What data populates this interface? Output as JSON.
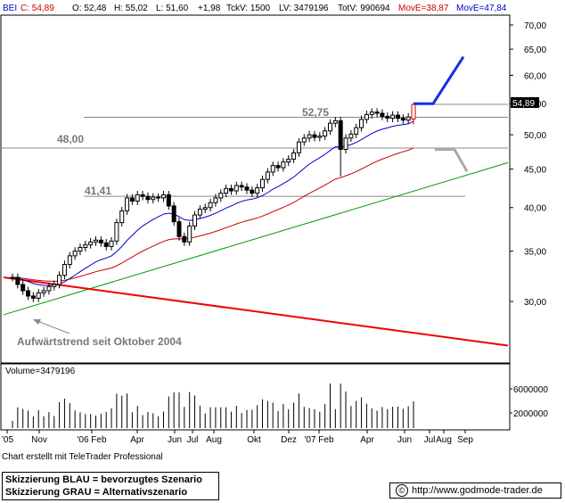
{
  "header": {
    "symbol": "BEI",
    "close_label": "C: 54,89",
    "open_label": "O: 52,48",
    "high_label": "H: 55,02",
    "low_label": "L: 51,60",
    "change_label": "+1,98",
    "tickvol_label": "TckV: 1500",
    "lastvol_label": "LV: 3479196",
    "totvol_label": "TotV: 990694",
    "ma1_label": "MovE=38,87",
    "ma2_label": "MovE=47,84"
  },
  "colors": {
    "symbol": "#0000cc",
    "ma1": "#cc0000",
    "ma2": "#0000cc",
    "candle": "#000000",
    "trend_red": "#ee0000",
    "trend_green": "#009900",
    "scenario_blue": "#1133dd",
    "scenario_grey": "#aaaaaa",
    "last_price_candle": "#cc0000"
  },
  "annotations": {
    "level_52_75": "52,75",
    "level_48": "48,00",
    "level_41_41": "41,41",
    "trend_text": "Aufwärtstrend seit Oktober 2004",
    "last_price": "54,89"
  },
  "volume_panel": {
    "label": "Volume=3479196",
    "tick_6m": "6000000",
    "tick_2m": "2000000"
  },
  "footer": {
    "credit": "Chart erstellt mit TeleTrader Professional",
    "legend_blue": "Skizzierung BLAU = bevorzugtes Szenario",
    "legend_grey": "Skizzierung GRAU = Alternativszenario",
    "url": "http://www.godmode-trader.de",
    "copyright_symbol": "©"
  },
  "chart_data": {
    "type": "candlestick",
    "symbol": "BEI",
    "x_tick_labels": [
      "'05",
      "Nov",
      "'06 Feb",
      "Apr",
      "Jun",
      "Jul",
      "Aug",
      "Okt",
      "Dez",
      "'07 Feb",
      "Apr",
      "Jun",
      "Jul",
      "Aug",
      "Sep"
    ],
    "y_tick_labels": [
      "70,00",
      "65,00",
      "60,00",
      "55,00",
      "50,00",
      "45,00",
      "40,00",
      "35,00",
      "30,00"
    ],
    "y_scale": "log",
    "ylim": [
      25.5,
      72
    ],
    "last": {
      "open": 52.48,
      "high": 55.02,
      "low": 51.6,
      "close": 54.89,
      "change": 1.98
    },
    "weekly_closes": [
      32.3,
      31.6,
      31.0,
      30.5,
      30.3,
      30.8,
      31.0,
      31.4,
      31.6,
      32.5,
      33.6,
      34.5,
      35.0,
      35.4,
      35.7,
      36.0,
      36.2,
      35.9,
      35.5,
      36.1,
      38.2,
      39.6,
      41.2,
      40.8,
      41.6,
      41.4,
      41.0,
      41.3,
      41.2,
      41.6,
      40.2,
      38.3,
      36.6,
      36.0,
      37.8,
      39.1,
      39.8,
      40.0,
      40.6,
      41.2,
      41.8,
      42.4,
      42.1,
      42.8,
      42.6,
      42.2,
      41.8,
      42.5,
      43.6,
      44.6,
      45.5,
      45.2,
      46.0,
      46.4,
      47.3,
      48.9,
      49.5,
      50.0,
      49.6,
      49.8,
      50.6,
      51.8,
      52.2,
      47.8,
      49.5,
      50.1,
      51.1,
      52.4,
      53.2,
      53.6,
      53.4,
      52.9,
      52.6,
      53.1,
      52.6,
      52.3,
      52.8,
      54.89
    ],
    "horizontal_levels": [
      {
        "label": "52,75",
        "value": 52.75
      },
      {
        "label": "48,00",
        "value": 48.0
      },
      {
        "label": "41,41",
        "value": 41.41
      },
      {
        "label": "",
        "value": 54.89
      }
    ],
    "moving_averages": [
      {
        "name": "MovE=38,87",
        "last_value": 38.87
      },
      {
        "name": "MovE=47,84",
        "last_value": 47.84
      }
    ],
    "trendlines": [
      {
        "name": "Aufwärtstrend seit Oktober 2004",
        "start_value": 28.8,
        "end_value": 45.9
      },
      {
        "name": "",
        "start_value": 32.3,
        "end_value": 26.2
      }
    ],
    "scenario_paths": [
      {
        "name": "Skizzierung BLAU = bevorzugtes Szenario",
        "values": [
          55.0,
          55.0,
          63.5
        ]
      },
      {
        "name": "Skizzierung GRAU = Alternativszenario",
        "values": [
          47.8,
          47.8,
          44.7
        ]
      }
    ],
    "volume": {
      "last": 3479196,
      "y_tick_labels": [
        "6000000",
        "2000000"
      ]
    }
  }
}
